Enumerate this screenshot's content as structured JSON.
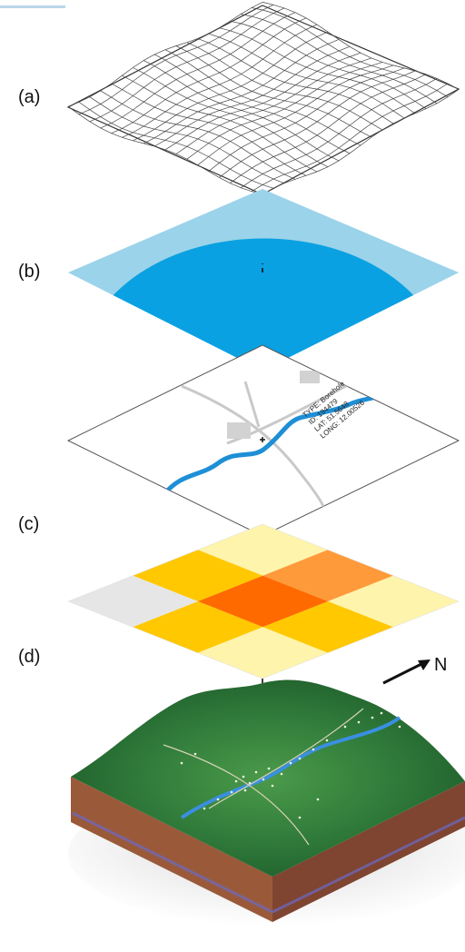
{
  "panels": [
    {
      "id": "a",
      "label": "(a)"
    },
    {
      "id": "b",
      "label": "(b)"
    },
    {
      "id": "c",
      "label": "(c)"
    },
    {
      "id": "d",
      "label": "(d)"
    }
  ],
  "north_label": "N",
  "point_attributes": {
    "type": "TYPE: Borehole",
    "id": "ID: 194479",
    "lat": "LAT: 51.5648",
    "long": "LONG: 12.00526"
  },
  "colors": {
    "b_light": "#9bd3ea",
    "b_dark": "#0aa1e2",
    "river": "#1e8fd6",
    "road": "#c9c9c9",
    "grid_pale": "#fff4ac",
    "grid_yellow": "#ffc800",
    "grid_orange": "#ff9a3a",
    "grid_red": "#ff6a00",
    "grid_gray": "#e6e6e6",
    "terrain": "#2f7a3a",
    "soil": "#9a5a3a"
  }
}
